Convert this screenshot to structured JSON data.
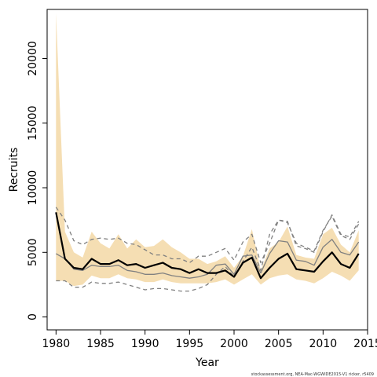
{
  "chart_data": {
    "type": "line",
    "title": "",
    "xlabel": "Year",
    "ylabel": "Recruits",
    "xlim": [
      1979,
      2015
    ],
    "ylim": [
      -1000,
      23800
    ],
    "x_ticks": [
      1980,
      1985,
      1990,
      1995,
      2000,
      2005,
      2010,
      2015
    ],
    "y_ticks": [
      0,
      5000,
      10000,
      15000,
      20000
    ],
    "grid": false,
    "legend": "none",
    "x": [
      1980,
      1981,
      1982,
      1983,
      1984,
      1985,
      1986,
      1987,
      1988,
      1989,
      1990,
      1991,
      1992,
      1993,
      1994,
      1995,
      1996,
      1997,
      1998,
      1999,
      2000,
      2001,
      2002,
      2003,
      2004,
      2005,
      2006,
      2007,
      2008,
      2009,
      2010,
      2011,
      2012,
      2013,
      2014
    ],
    "band": {
      "color": "#f5deb3",
      "upper": [
        23500,
        6600,
        5000,
        4600,
        6600,
        5700,
        5300,
        6400,
        5300,
        6000,
        5400,
        5500,
        6000,
        5400,
        5000,
        4500,
        4500,
        4100,
        4300,
        4700,
        3800,
        4700,
        6800,
        3600,
        5300,
        5800,
        7000,
        4800,
        4600,
        4500,
        6400,
        6900,
        5600,
        5000,
        6700
      ],
      "lower": [
        2800,
        2800,
        2400,
        2500,
        3200,
        3000,
        3000,
        3300,
        3000,
        2900,
        2700,
        2700,
        2900,
        2700,
        2600,
        2600,
        2600,
        2600,
        2700,
        2900,
        2500,
        2900,
        3300,
        2500,
        3000,
        3200,
        3300,
        2900,
        2800,
        2600,
        3000,
        3500,
        3200,
        2800,
        3600
      ]
    },
    "series": [
      {
        "color": "#000000",
        "style": "solid-thick",
        "values": [
          8100,
          4500,
          3800,
          3700,
          4500,
          4100,
          4100,
          4400,
          4000,
          4100,
          3800,
          4000,
          4200,
          3800,
          3700,
          3400,
          3700,
          3400,
          3400,
          3600,
          3100,
          4200,
          4600,
          3000,
          3800,
          4500,
          4900,
          3700,
          3600,
          3500,
          4300,
          5000,
          4100,
          3800,
          4900
        ]
      },
      {
        "color": "#808080",
        "style": "solid-thin",
        "values": [
          4900,
          4500,
          3700,
          3600,
          4000,
          3900,
          3900,
          4000,
          3600,
          3500,
          3300,
          3300,
          3400,
          3200,
          3100,
          3000,
          3100,
          3300,
          4000,
          4100,
          3300,
          4700,
          4800,
          3400,
          4900,
          5900,
          5800,
          4400,
          4300,
          4000,
          5400,
          6000,
          5000,
          4800,
          5800
        ]
      },
      {
        "color": "#808080",
        "style": "dashed",
        "values": [
          2800,
          2800,
          2300,
          2300,
          2700,
          2600,
          2600,
          2700,
          2500,
          2300,
          2100,
          2200,
          2200,
          2100,
          2000,
          2000,
          2200,
          2500,
          3300,
          3900,
          3100,
          4300,
          5400,
          3600,
          6400,
          7500,
          7300,
          5700,
          5400,
          5100,
          6700,
          7800,
          6300,
          6000,
          7200
        ]
      },
      {
        "color": "#808080",
        "style": "dashed",
        "values": [
          8500,
          7500,
          5900,
          5600,
          6000,
          6100,
          6000,
          6100,
          5700,
          5600,
          5200,
          4800,
          4800,
          4500,
          4500,
          4200,
          4700,
          4700,
          5000,
          5300,
          4400,
          5800,
          6400,
          4200,
          5700,
          7500,
          7400,
          5500,
          5300,
          5000,
          6600,
          7900,
          6400,
          6200,
          7400
        ]
      }
    ]
  },
  "credit": "stockassessment.org, NEA-Mac-WGWIDE2015-V1 ricker, r5409"
}
